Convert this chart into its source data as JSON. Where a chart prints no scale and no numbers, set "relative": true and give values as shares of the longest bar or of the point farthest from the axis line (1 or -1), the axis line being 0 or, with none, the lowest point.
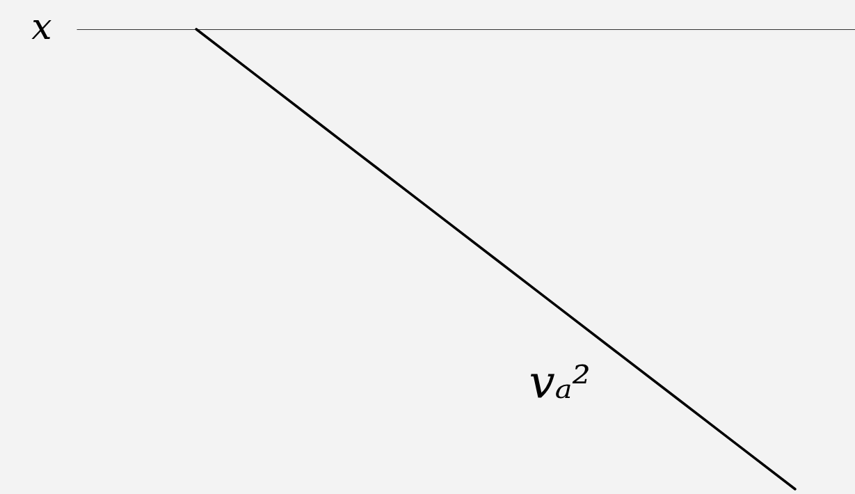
{
  "chart_data": {
    "type": "line",
    "relative": true,
    "xlabel": "x",
    "line_style": "solid",
    "categories": [
      null,
      null,
      null,
      null,
      null,
      null,
      null,
      null,
      null,
      null,
      null,
      null,
      null,
      null
    ],
    "series": [
      {
        "name": "vₐ²",
        "color": "#000000",
        "values": [
          null,
          null,
          0,
          -0.1,
          -0.2,
          -0.3,
          -0.4,
          -0.5,
          -0.6,
          -0.7,
          -0.8,
          -0.9,
          -1,
          null
        ]
      }
    ]
  }
}
